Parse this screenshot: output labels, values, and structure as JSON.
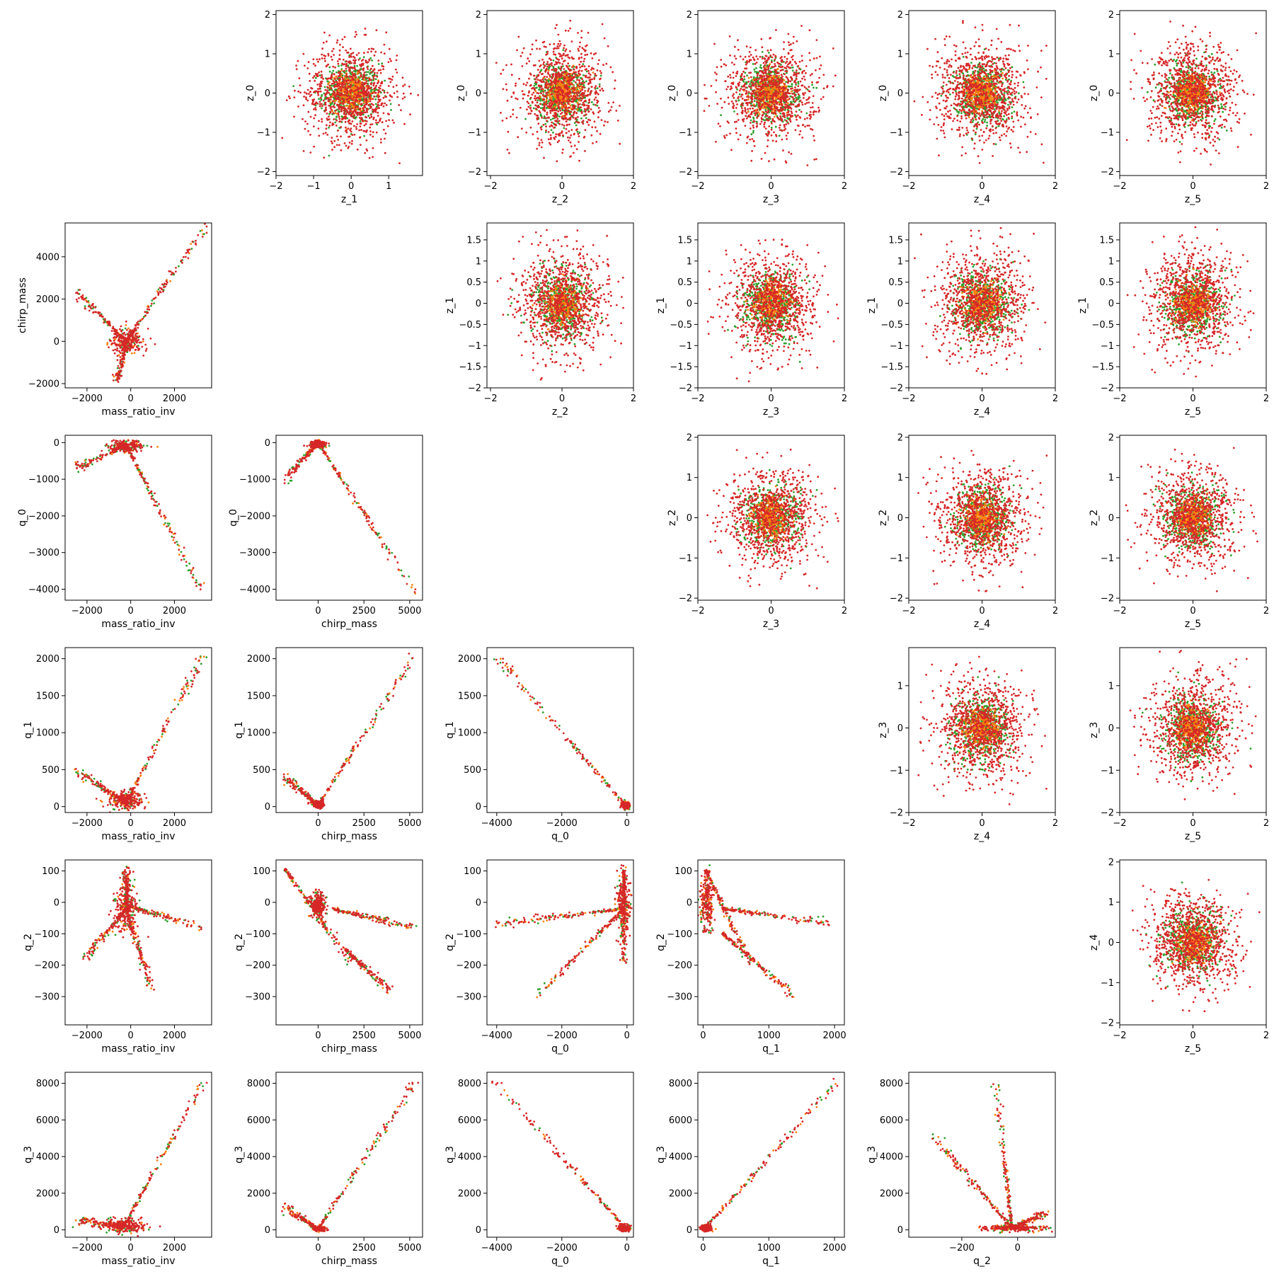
{
  "figure": {
    "type": "scatter-matrix",
    "series_colors": [
      "#2ca02c",
      "#ff7f0e",
      "#d62728"
    ],
    "grid": false,
    "legend": "none"
  },
  "chart_data": [
    {
      "type": "scatter",
      "xlabel": "z_1",
      "ylabel": "z_0",
      "xlim": [
        -2,
        1.9
      ],
      "ylim": [
        -2.1,
        2.1
      ],
      "xticks": [
        -2,
        -1,
        0,
        1
      ],
      "yticks": [
        -2,
        -1,
        0,
        1,
        2
      ],
      "pattern": {
        "kind": "gauss"
      }
    },
    {
      "type": "scatter",
      "xlabel": "z_2",
      "ylabel": "z_0",
      "xlim": [
        -2.1,
        2.0
      ],
      "ylim": [
        -2.1,
        2.1
      ],
      "xticks": [
        -2,
        0,
        2
      ],
      "yticks": [
        -2,
        -1,
        0,
        1,
        2
      ],
      "pattern": {
        "kind": "gauss"
      }
    },
    {
      "type": "scatter",
      "xlabel": "z_3",
      "ylabel": "z_0",
      "xlim": [
        -2.0,
        2.0
      ],
      "ylim": [
        -2.1,
        2.1
      ],
      "xticks": [
        -2,
        0,
        2
      ],
      "yticks": [
        -2,
        -1,
        0,
        1,
        2
      ],
      "pattern": {
        "kind": "gauss"
      }
    },
    {
      "type": "scatter",
      "xlabel": "z_4",
      "ylabel": "z_0",
      "xlim": [
        -2.0,
        2.0
      ],
      "ylim": [
        -2.1,
        2.1
      ],
      "xticks": [
        -2,
        0,
        2
      ],
      "yticks": [
        -2,
        -1,
        0,
        1,
        2
      ],
      "pattern": {
        "kind": "gauss"
      }
    },
    {
      "type": "scatter",
      "xlabel": "z_5",
      "ylabel": "z_0",
      "xlim": [
        -2.0,
        2.0
      ],
      "ylim": [
        -2.1,
        2.1
      ],
      "xticks": [
        -2,
        0,
        2
      ],
      "yticks": [
        -2,
        -1,
        0,
        1,
        2
      ],
      "pattern": {
        "kind": "gauss"
      }
    },
    {
      "type": "scatter",
      "xlabel": "mass_ratio_inv",
      "ylabel": "chirp_mass",
      "xlim": [
        -3000,
        3700
      ],
      "ylim": [
        -2200,
        5600
      ],
      "xticks": [
        -2000,
        0,
        2000
      ],
      "yticks": [
        -2000,
        0,
        2000,
        4000
      ],
      "pattern": {
        "kind": "segs",
        "core": [
          [
            -200,
            0,
            400,
            300
          ]
        ],
        "segs": [
          [
            [
              -200,
              0
            ],
            [
              -2500,
              2300
            ]
          ],
          [
            [
              -200,
              0
            ],
            [
              3300,
              5300
            ]
          ],
          [
            [
              -200,
              0
            ],
            [
              -600,
              -1800
            ]
          ]
        ]
      }
    },
    {
      "type": "scatter",
      "xlabel": "z_2",
      "ylabel": "z_1",
      "xlim": [
        -2.1,
        2.0
      ],
      "ylim": [
        -2.0,
        1.9
      ],
      "xticks": [
        -2,
        0,
        2
      ],
      "yticks": [
        -2.0,
        -1.5,
        -1.0,
        -0.5,
        0.0,
        0.5,
        1.0,
        1.5
      ],
      "pattern": {
        "kind": "gauss"
      }
    },
    {
      "type": "scatter",
      "xlabel": "z_3",
      "ylabel": "z_1",
      "xlim": [
        -2.0,
        2.0
      ],
      "ylim": [
        -2.0,
        1.9
      ],
      "xticks": [
        -2,
        0,
        2
      ],
      "yticks": [
        -2.0,
        -1.5,
        -1.0,
        -0.5,
        0.0,
        0.5,
        1.0,
        1.5
      ],
      "pattern": {
        "kind": "gauss"
      }
    },
    {
      "type": "scatter",
      "xlabel": "z_4",
      "ylabel": "z_1",
      "xlim": [
        -2.0,
        2.0
      ],
      "ylim": [
        -2.0,
        1.9
      ],
      "xticks": [
        -2,
        0,
        2
      ],
      "yticks": [
        -2.0,
        -1.5,
        -1.0,
        -0.5,
        0.0,
        0.5,
        1.0,
        1.5
      ],
      "pattern": {
        "kind": "gauss"
      }
    },
    {
      "type": "scatter",
      "xlabel": "z_5",
      "ylabel": "z_1",
      "xlim": [
        -2.0,
        2.0
      ],
      "ylim": [
        -2.0,
        1.9
      ],
      "xticks": [
        -2,
        0,
        2
      ],
      "yticks": [
        -2.0,
        -1.5,
        -1.0,
        -0.5,
        0.0,
        0.5,
        1.0,
        1.5
      ],
      "pattern": {
        "kind": "gauss"
      }
    },
    {
      "type": "scatter",
      "xlabel": "mass_ratio_inv",
      "ylabel": "q_0",
      "xlim": [
        -3000,
        3700
      ],
      "ylim": [
        -4300,
        200
      ],
      "xticks": [
        -2000,
        0,
        2000
      ],
      "yticks": [
        -4000,
        -3000,
        -2000,
        -1000,
        0
      ],
      "pattern": {
        "kind": "segs",
        "core": [
          [
            -200,
            -100,
            400,
            80
          ]
        ],
        "segs": [
          [
            [
              -200,
              -50
            ],
            [
              -2500,
              -700
            ]
          ],
          [
            [
              -200,
              -100
            ],
            [
              3300,
              -4100
            ]
          ]
        ]
      }
    },
    {
      "type": "scatter",
      "xlabel": "chirp_mass",
      "ylabel": "q_0",
      "xlim": [
        -2300,
        5700
      ],
      "ylim": [
        -4300,
        200
      ],
      "xticks": [
        0,
        2500,
        5000
      ],
      "yticks": [
        -4000,
        -3000,
        -2000,
        -1000,
        0
      ],
      "pattern": {
        "kind": "segs",
        "core": [
          [
            0,
            -50,
            200,
            50
          ]
        ],
        "segs": [
          [
            [
              0,
              0
            ],
            [
              -1800,
              -1000
            ]
          ],
          [
            [
              0,
              0
            ],
            [
              5300,
              -4100
            ]
          ]
        ]
      }
    },
    {
      "type": "scatter",
      "xlabel": "z_3",
      "ylabel": "z_2",
      "xlim": [
        -2.0,
        2.0
      ],
      "ylim": [
        -2.05,
        2.05
      ],
      "xticks": [
        -2,
        0,
        2
      ],
      "yticks": [
        -2,
        -1,
        0,
        1,
        2
      ],
      "pattern": {
        "kind": "gauss"
      }
    },
    {
      "type": "scatter",
      "xlabel": "z_4",
      "ylabel": "z_2",
      "xlim": [
        -2.0,
        2.0
      ],
      "ylim": [
        -2.05,
        2.05
      ],
      "xticks": [
        -2,
        0,
        2
      ],
      "yticks": [
        -2,
        -1,
        0,
        1,
        2
      ],
      "pattern": {
        "kind": "gauss"
      }
    },
    {
      "type": "scatter",
      "xlabel": "z_5",
      "ylabel": "z_2",
      "xlim": [
        -2.0,
        2.0
      ],
      "ylim": [
        -2.05,
        2.05
      ],
      "xticks": [
        -2,
        0,
        2
      ],
      "yticks": [
        -2,
        -1,
        0,
        1,
        2
      ],
      "pattern": {
        "kind": "gauss"
      }
    },
    {
      "type": "scatter",
      "xlabel": "mass_ratio_inv",
      "ylabel": "q_1",
      "xlim": [
        -3000,
        3700
      ],
      "ylim": [
        -80,
        2150
      ],
      "xticks": [
        -2000,
        0,
        2000
      ],
      "yticks": [
        0,
        500,
        1000,
        1500,
        2000
      ],
      "pattern": {
        "kind": "segs",
        "core": [
          [
            -200,
            100,
            400,
            60
          ]
        ],
        "segs": [
          [
            [
              -200,
              50
            ],
            [
              -2500,
              480
            ]
          ],
          [
            [
              -200,
              50
            ],
            [
              3300,
              2050
            ]
          ]
        ]
      }
    },
    {
      "type": "scatter",
      "xlabel": "chirp_mass",
      "ylabel": "q_1",
      "xlim": [
        -2300,
        5700
      ],
      "ylim": [
        -80,
        2150
      ],
      "xticks": [
        0,
        2500,
        5000
      ],
      "yticks": [
        0,
        500,
        1000,
        1500,
        2000
      ],
      "pattern": {
        "kind": "segs",
        "core": [
          [
            0,
            30,
            150,
            20
          ]
        ],
        "segs": [
          [
            [
              0,
              20
            ],
            [
              -1800,
              400
            ]
          ],
          [
            [
              0,
              20
            ],
            [
              5300,
              2050
            ]
          ]
        ]
      }
    },
    {
      "type": "scatter",
      "xlabel": "q_0",
      "ylabel": "q_1",
      "xlim": [
        -4300,
        200
      ],
      "ylim": [
        -80,
        2150
      ],
      "xticks": [
        -4000,
        -2000,
        0
      ],
      "yticks": [
        0,
        500,
        1000,
        1500,
        2000
      ],
      "pattern": {
        "kind": "segs",
        "core": [
          [
            -50,
            20,
            60,
            20
          ]
        ],
        "segs": [
          [
            [
              0,
              0
            ],
            [
              -4050,
              2050
            ]
          ]
        ]
      }
    },
    {
      "type": "scatter",
      "xlabel": "z_4",
      "ylabel": "z_3",
      "xlim": [
        -2.0,
        2.0
      ],
      "ylim": [
        -2.0,
        1.9
      ],
      "xticks": [
        -2,
        0,
        2
      ],
      "yticks": [
        -2,
        -1,
        0,
        1
      ],
      "pattern": {
        "kind": "gauss"
      }
    },
    {
      "type": "scatter",
      "xlabel": "z_5",
      "ylabel": "z_3",
      "xlim": [
        -2.0,
        2.0
      ],
      "ylim": [
        -2.0,
        1.9
      ],
      "xticks": [
        -2,
        0,
        2
      ],
      "yticks": [
        -2,
        -1,
        0,
        1
      ],
      "pattern": {
        "kind": "gauss"
      }
    },
    {
      "type": "scatter",
      "xlabel": "mass_ratio_inv",
      "ylabel": "q_2",
      "xlim": [
        -3000,
        3700
      ],
      "ylim": [
        -390,
        135
      ],
      "xticks": [
        -2000,
        0,
        2000
      ],
      "yticks": [
        -300,
        -200,
        -100,
        0,
        100
      ],
      "pattern": {
        "kind": "segs",
        "core": [
          [
            -200,
            -20,
            250,
            40
          ]
        ],
        "segs": [
          [
            [
              -200,
              -20
            ],
            [
              -2100,
              -180
            ]
          ],
          [
            [
              -200,
              -10
            ],
            [
              3300,
              -80
            ]
          ],
          [
            [
              -200,
              -20
            ],
            [
              900,
              -270
            ]
          ],
          [
            [
              -200,
              0
            ],
            [
              -200,
              110
            ]
          ]
        ]
      }
    },
    {
      "type": "scatter",
      "xlabel": "chirp_mass",
      "ylabel": "q_2",
      "xlim": [
        -2300,
        5700
      ],
      "ylim": [
        -390,
        135
      ],
      "xticks": [
        0,
        2500,
        5000
      ],
      "yticks": [
        -300,
        -200,
        -100,
        0,
        100
      ],
      "pattern": {
        "kind": "segs",
        "core": [
          [
            0,
            -10,
            200,
            20
          ]
        ],
        "segs": [
          [
            [
              -1800,
              105
            ],
            [
              1800,
              -190
            ]
          ],
          [
            [
              800,
              -20
            ],
            [
              5300,
              -80
            ]
          ],
          [
            [
              1500,
              -150
            ],
            [
              3900,
              -280
            ]
          ]
        ]
      }
    },
    {
      "type": "scatter",
      "xlabel": "q_0",
      "ylabel": "q_2",
      "xlim": [
        -4300,
        200
      ],
      "ylim": [
        -390,
        135
      ],
      "xticks": [
        -4000,
        -2000,
        0
      ],
      "yticks": [
        -300,
        -200,
        -100,
        0,
        100
      ],
      "pattern": {
        "kind": "segs",
        "core": [
          [
            -100,
            0,
            100,
            50
          ]
        ],
        "segs": [
          [
            [
              -100,
              -20
            ],
            [
              -4000,
              -70
            ]
          ],
          [
            [
              -100,
              -20
            ],
            [
              -2800,
              -300
            ]
          ],
          [
            [
              -100,
              100
            ],
            [
              -100,
              -200
            ]
          ]
        ]
      }
    },
    {
      "type": "scatter",
      "xlabel": "q_1",
      "ylabel": "q_2",
      "xlim": [
        -80,
        2150
      ],
      "ylim": [
        -390,
        135
      ],
      "xticks": [
        0,
        1000,
        2000
      ],
      "yticks": [
        -300,
        -200,
        -100,
        0,
        100
      ],
      "pattern": {
        "kind": "segs",
        "core": [
          [
            50,
            0,
            50,
            50
          ]
        ],
        "segs": [
          [
            [
              50,
              100
            ],
            [
              700,
              -190
            ]
          ],
          [
            [
              300,
              -20
            ],
            [
              2000,
              -70
            ]
          ],
          [
            [
              300,
              -100
            ],
            [
              1400,
              -300
            ]
          ]
        ]
      }
    },
    {
      "type": "scatter",
      "xlabel": "z_5",
      "ylabel": "z_4",
      "xlim": [
        -2.0,
        2.0
      ],
      "ylim": [
        -2.05,
        2.05
      ],
      "xticks": [
        -2,
        0,
        2
      ],
      "yticks": [
        -2,
        -1,
        0,
        1,
        2
      ],
      "pattern": {
        "kind": "gauss"
      }
    },
    {
      "type": "scatter",
      "xlabel": "mass_ratio_inv",
      "ylabel": "q_3",
      "xlim": [
        -3000,
        3700
      ],
      "ylim": [
        -400,
        8600
      ],
      "xticks": [
        -2000,
        0,
        2000
      ],
      "yticks": [
        0,
        2000,
        4000,
        6000,
        8000
      ],
      "pattern": {
        "kind": "segs",
        "core": [
          [
            -300,
            200,
            500,
            200
          ]
        ],
        "segs": [
          [
            [
              -300,
              200
            ],
            [
              -2500,
              500
            ]
          ],
          [
            [
              -300,
              200
            ],
            [
              3300,
              8100
            ]
          ]
        ]
      }
    },
    {
      "type": "scatter",
      "xlabel": "chirp_mass",
      "ylabel": "q_3",
      "xlim": [
        -2300,
        5700
      ],
      "ylim": [
        -400,
        8600
      ],
      "xticks": [
        0,
        2500,
        5000
      ],
      "yticks": [
        0,
        2000,
        4000,
        6000,
        8000
      ],
      "pattern": {
        "kind": "segs",
        "core": [
          [
            100,
            50,
            150,
            60
          ]
        ],
        "segs": [
          [
            [
              0,
              50
            ],
            [
              -1800,
              1200
            ]
          ],
          [
            [
              0,
              50
            ],
            [
              5300,
              8100
            ]
          ]
        ]
      }
    },
    {
      "type": "scatter",
      "xlabel": "q_0",
      "ylabel": "q_3",
      "xlim": [
        -4300,
        200
      ],
      "ylim": [
        -400,
        8600
      ],
      "xticks": [
        -4000,
        -2000,
        0
      ],
      "yticks": [
        0,
        2000,
        4000,
        6000,
        8000
      ],
      "pattern": {
        "kind": "segs",
        "core": [
          [
            -100,
            100,
            80,
            80
          ]
        ],
        "segs": [
          [
            [
              0,
              0
            ],
            [
              -4050,
              8100
            ]
          ]
        ]
      }
    },
    {
      "type": "scatter",
      "xlabel": "q_1",
      "ylabel": "q_3",
      "xlim": [
        -80,
        2150
      ],
      "ylim": [
        -400,
        8600
      ],
      "xticks": [
        0,
        1000,
        2000
      ],
      "yticks": [
        0,
        2000,
        4000,
        6000,
        8000
      ],
      "pattern": {
        "kind": "segs",
        "core": [
          [
            50,
            100,
            40,
            80
          ]
        ],
        "segs": [
          [
            [
              0,
              0
            ],
            [
              2050,
              8100
            ]
          ]
        ]
      }
    },
    {
      "type": "scatter",
      "xlabel": "q_2",
      "ylabel": "q_3",
      "xlim": [
        -390,
        135
      ],
      "ylim": [
        -400,
        8600
      ],
      "xticks": [
        -200,
        0
      ],
      "yticks": [
        0,
        2000,
        4000,
        6000,
        8000
      ],
      "pattern": {
        "kind": "segs",
        "core": [
          [
            -20,
            100,
            60,
            80
          ]
        ],
        "segs": [
          [
            [
              -20,
              100
            ],
            [
              -300,
              5100
            ]
          ],
          [
            [
              -20,
              100
            ],
            [
              -80,
              8000
            ]
          ],
          [
            [
              -20,
              100
            ],
            [
              110,
              1000
            ]
          ]
        ]
      }
    }
  ]
}
